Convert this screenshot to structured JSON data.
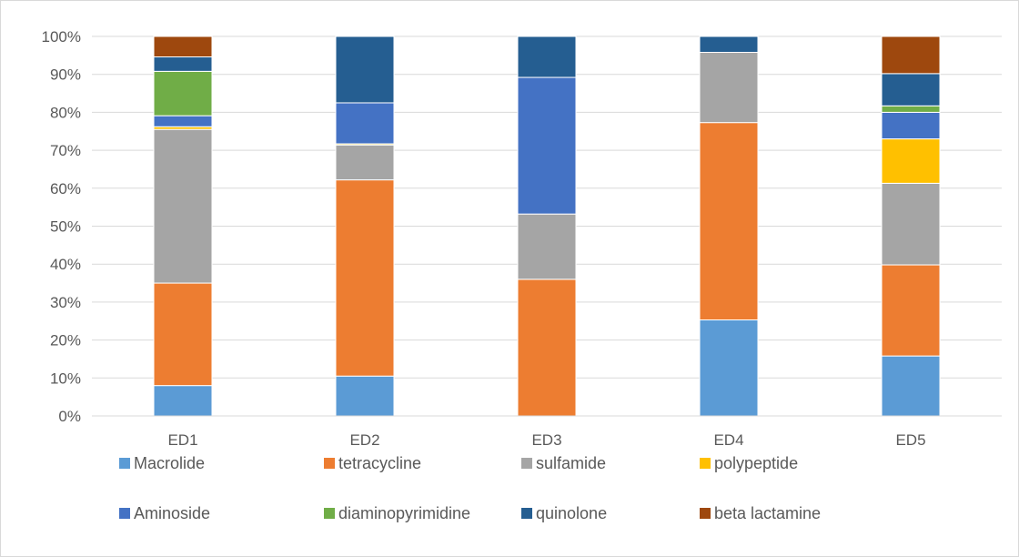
{
  "chart_data": {
    "type": "bar",
    "stacked": "percent",
    "title": "",
    "xlabel": "",
    "ylabel": "",
    "ylim": [
      0,
      100
    ],
    "yticks": [
      "0%",
      "10%",
      "20%",
      "30%",
      "40%",
      "50%",
      "60%",
      "70%",
      "80%",
      "90%",
      "100%"
    ],
    "categories": [
      "ED1",
      "ED2",
      "ED3",
      "ED4",
      "ED5"
    ],
    "grid": "horizontal",
    "legend_position": "bottom",
    "series": [
      {
        "name": "Macrolide",
        "color": "#5b9bd5",
        "values": [
          8.0,
          10.5,
          0.0,
          25.3,
          15.8
        ]
      },
      {
        "name": "tetracycline",
        "color": "#ed7d31",
        "values": [
          27.0,
          51.7,
          36.0,
          52.0,
          24.0
        ]
      },
      {
        "name": "sulfamide",
        "color": "#a5a5a5",
        "values": [
          40.5,
          9.2,
          17.2,
          18.5,
          21.5
        ]
      },
      {
        "name": "polypeptide",
        "color": "#ffc000",
        "values": [
          0.7,
          0.3,
          0.0,
          0.0,
          11.7
        ]
      },
      {
        "name": "Aminoside",
        "color": "#4472c4",
        "values": [
          2.9,
          10.8,
          36.0,
          0.0,
          7.0
        ]
      },
      {
        "name": "diaminopyrimidine",
        "color": "#70ad47",
        "values": [
          11.7,
          0.0,
          0.0,
          0.0,
          1.7
        ]
      },
      {
        "name": "quinolone",
        "color": "#255e91",
        "values": [
          3.8,
          17.5,
          10.8,
          4.2,
          8.5
        ]
      },
      {
        "name": "beta lactamine",
        "color": "#9e480e",
        "values": [
          5.4,
          0.0,
          0.0,
          0.0,
          9.8
        ]
      }
    ]
  }
}
